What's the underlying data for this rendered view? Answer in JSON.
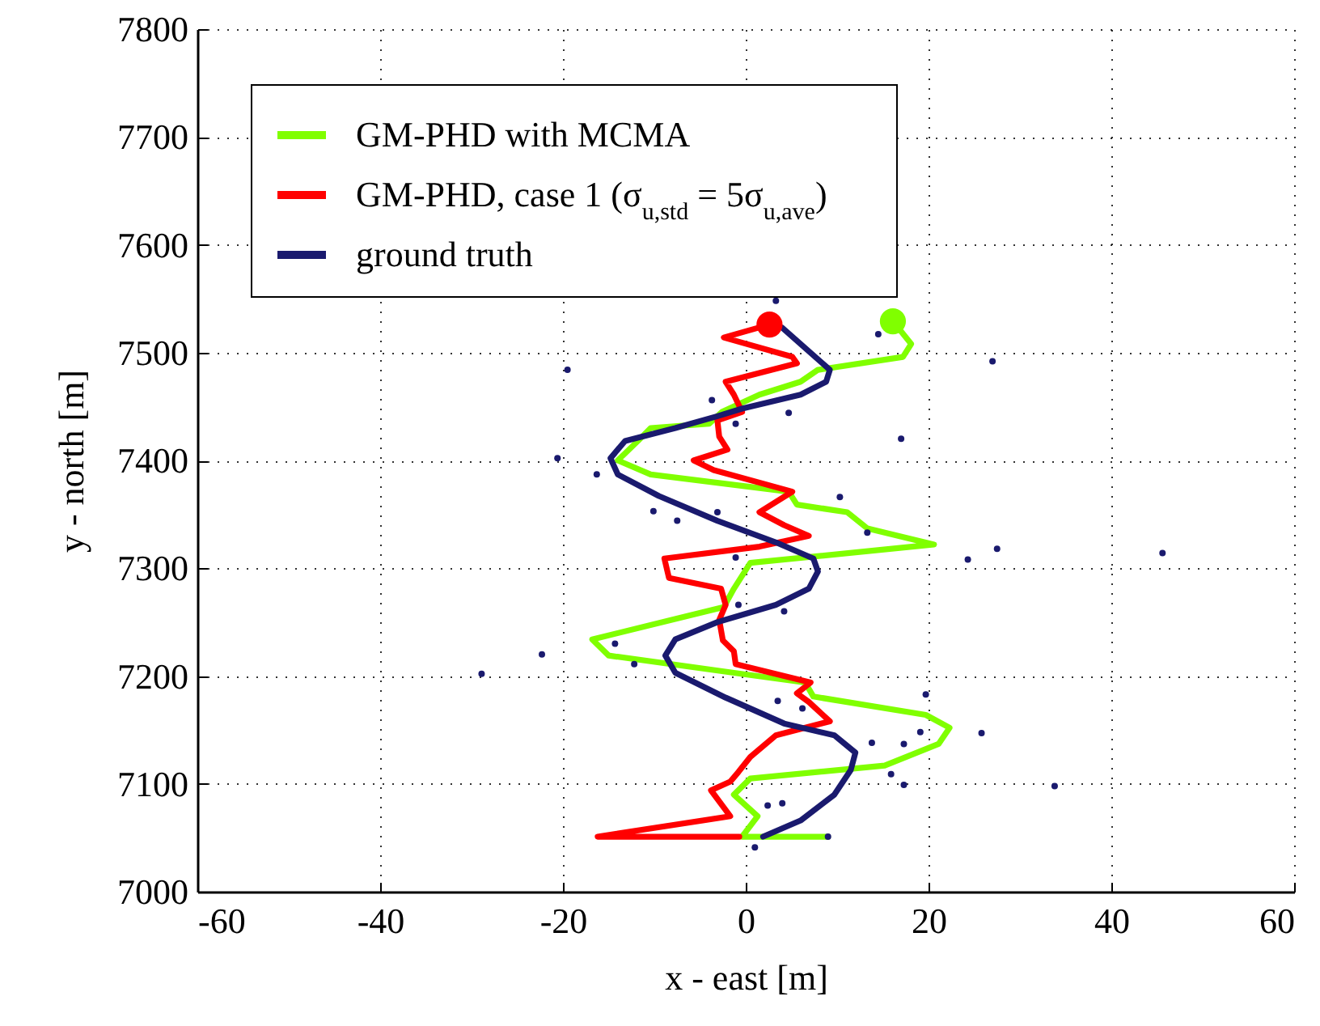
{
  "chart_data": {
    "type": "line",
    "xlabel": "x - east [m]",
    "ylabel": "y - north [m]",
    "xlim": [
      -60,
      60
    ],
    "ylim": [
      7000,
      7800
    ],
    "xticks": [
      -60,
      -40,
      -20,
      0,
      20,
      40,
      60
    ],
    "yticks": [
      7000,
      7100,
      7200,
      7300,
      7400,
      7500,
      7600,
      7700,
      7800
    ],
    "grid": true,
    "legend": "top left",
    "series": [
      {
        "name": "GM-PHD with MCMA",
        "color": "#80ff00",
        "x": [
          16.1,
          18.1,
          17.2,
          7.9,
          6,
          1.5,
          -2.6,
          -4,
          -10.4,
          -11.8,
          -14,
          -10.4,
          4.7,
          5.6,
          11.1,
          13.3,
          20.6,
          0.5,
          -1.3,
          -2.4,
          -16.8,
          -15,
          -1.3,
          6.5,
          7.4,
          19.7,
          22.3,
          21.1,
          15.2,
          0.5,
          -1.3,
          1.3,
          -0.4,
          9
        ],
        "values": [
          7529,
          7508,
          7496,
          7484,
          7473,
          7461,
          7445,
          7434,
          7430,
          7418,
          7400,
          7387,
          7371,
          7359,
          7352,
          7337,
          7322,
          7305,
          7281,
          7264,
          7234,
          7219,
          7203,
          7194,
          7181,
          7164,
          7152,
          7137,
          7117,
          7105,
          7090,
          7070,
          7051,
          7051
        ]
      },
      {
        "name": "GM-PHD, case 1 (σ$_{u,std}$ = 5σ$_{u,ave}$)",
        "color": "#ff0000",
        "x": [
          2.6,
          -2.4,
          5.1,
          5.6,
          -2.2,
          -1.3,
          -0.4,
          -3.1,
          -2.9,
          -2,
          -5.7,
          -3.5,
          5.1,
          1.5,
          4.2,
          6.9,
          1.5,
          -8.9,
          -8.4,
          -2.7,
          -2.2,
          -2.9,
          -2.5,
          -1.3,
          -1.1,
          7.1,
          5.6,
          6.9,
          9.2,
          3.3,
          0.5,
          -0.8,
          -1.7,
          -3.8,
          -1.7,
          -16.2,
          -0.7
        ],
        "values": [
          7526,
          7514,
          7496,
          7490,
          7473,
          7461,
          7445,
          7437,
          7422,
          7410,
          7400,
          7391,
          7371,
          7352,
          7340,
          7330,
          7320,
          7309,
          7291,
          7281,
          7266,
          7252,
          7233,
          7223,
          7211,
          7194,
          7184,
          7176,
          7158,
          7145,
          7125,
          7111,
          7102,
          7094,
          7070,
          7051,
          7051
        ]
      },
      {
        "name": "ground truth",
        "color": "#1a1a6e",
        "x": [
          4,
          9.2,
          8.8,
          6,
          -0.4,
          -3.1,
          -7.7,
          -13.2,
          -14.8,
          -14,
          -9.5,
          -3.1,
          3.3,
          7.4,
          7.9,
          6.9,
          3.3,
          -3.1,
          -7.7,
          -8.8,
          -7.7,
          -2.2,
          4.2,
          9.7,
          12,
          11.5,
          9.7,
          6,
          1.9
        ],
        "values": [
          7523,
          7484,
          7473,
          7461,
          7448,
          7441,
          7430,
          7418,
          7402,
          7387,
          7367,
          7344,
          7324,
          7309,
          7297,
          7281,
          7266,
          7250,
          7234,
          7219,
          7203,
          7180,
          7156,
          7145,
          7129,
          7113,
          7090,
          7066,
          7051
        ]
      },
      {
        "color": "#80ff00",
        "type": "scatter",
        "marker": "circle",
        "x": [
          16.1
        ],
        "values": [
          7529
        ]
      },
      {
        "color": "#ff0000",
        "type": "scatter",
        "marker": "circle",
        "x": [
          2.6
        ],
        "values": [
          7526
        ]
      },
      {
        "color": "#1a1a6e",
        "type": "scatter",
        "marker": "circle",
        "x": [
          3.3,
          -19.5,
          27,
          14.5,
          -3.7,
          4.7,
          -1.1,
          17,
          -20.6,
          -16.3,
          -10.1,
          -7.5,
          -3.1,
          10.3,
          13.3,
          27.5,
          24.3,
          45.6,
          -1.1,
          -0.8,
          4.2,
          -14.3,
          -22.3,
          -28.9,
          -12.2,
          -4.5,
          3.5,
          19.7,
          25.8,
          19.1,
          13.8,
          17.3,
          15.9,
          17.3,
          33.8,
          2.4,
          4,
          1,
          9,
          6.2
        ],
        "values": [
          7548,
          7484,
          7492,
          7517,
          7456,
          7444,
          7434,
          7420,
          7402,
          7387,
          7353,
          7344,
          7352,
          7366,
          7333,
          7318,
          7308,
          7314,
          7310,
          7266,
          7260,
          7230,
          7220,
          7202,
          7211,
          null,
          7177,
          7183,
          7147,
          7148,
          7138,
          7137,
          7109,
          7099,
          7098,
          7080,
          7082,
          7041,
          7051,
          7170
        ]
      }
    ]
  }
}
